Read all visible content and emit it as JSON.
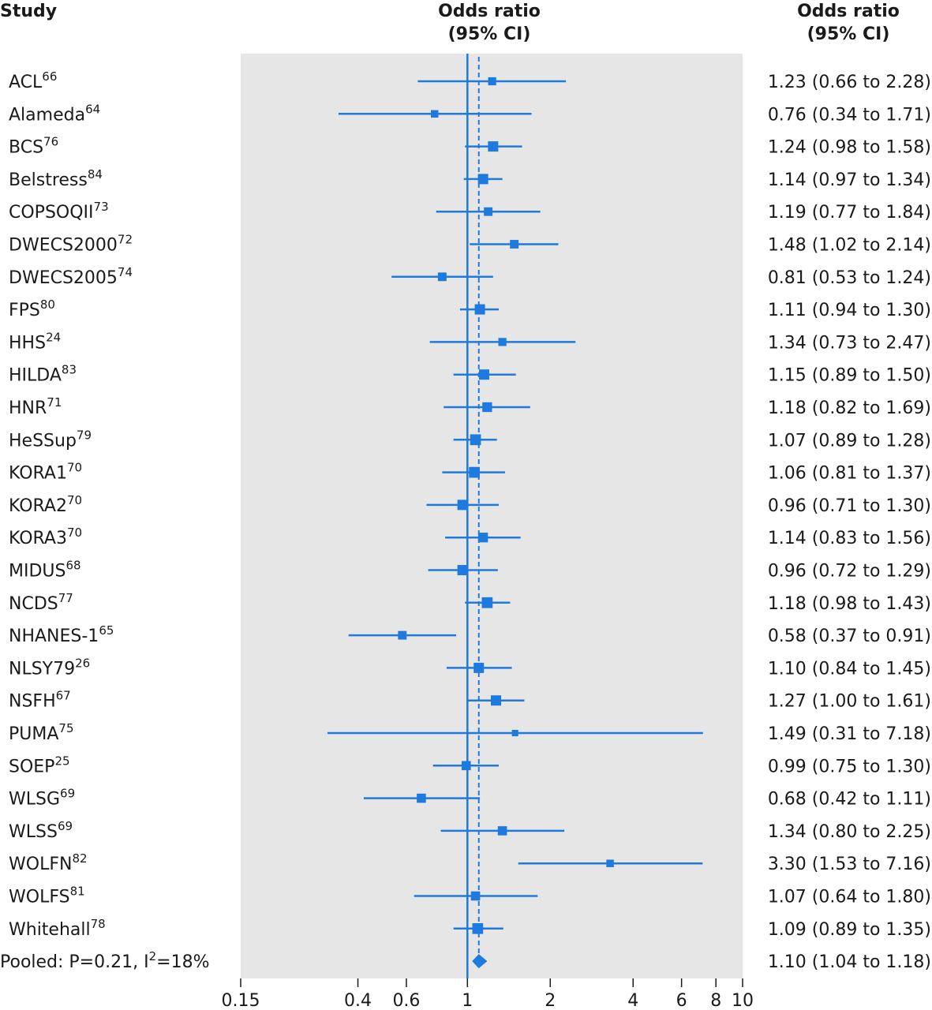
{
  "header": {
    "study": "Study",
    "center_line1": "Odds ratio",
    "center_line2": "(95% CI)",
    "right_line1": "Odds ratio",
    "right_line2": "(95% CI)"
  },
  "colors": {
    "accent": "#1f7ae0",
    "panel": "#e6e6e6",
    "text": "#1a1a1a"
  },
  "chart_data": {
    "type": "forest",
    "x_scale": "log",
    "xlim": [
      0.15,
      10
    ],
    "xticks": [
      0.15,
      0.4,
      0.6,
      1,
      2,
      4,
      6,
      8,
      10
    ],
    "xtick_labels": [
      "0.15",
      "0.4",
      "0.6",
      "1",
      "2",
      "4",
      "6",
      "8",
      "10"
    ],
    "reference_line": 1,
    "pooled_line": 1.1,
    "studies": [
      {
        "name": "ACL",
        "ref": "66",
        "or": 1.23,
        "lo": 0.66,
        "hi": 2.28,
        "ci_text": "1.23 (0.66 to 2.28)",
        "weight": 0.6
      },
      {
        "name": "Alameda",
        "ref": "64",
        "or": 0.76,
        "lo": 0.34,
        "hi": 1.71,
        "ci_text": "0.76 (0.34 to 1.71)",
        "weight": 0.5
      },
      {
        "name": "BCS",
        "ref": "76",
        "or": 1.24,
        "lo": 0.98,
        "hi": 1.58,
        "ci_text": "1.24 (0.98 to 1.58)",
        "weight": 1.0
      },
      {
        "name": "Belstress",
        "ref": "84",
        "or": 1.14,
        "lo": 0.97,
        "hi": 1.34,
        "ci_text": "1.14 (0.97 to 1.34)",
        "weight": 1.0
      },
      {
        "name": "COPSOQII",
        "ref": "73",
        "or": 1.19,
        "lo": 0.77,
        "hi": 1.84,
        "ci_text": "1.19 (0.77 to 1.84)",
        "weight": 0.7
      },
      {
        "name": "DWECS2000",
        "ref": "72",
        "or": 1.48,
        "lo": 1.02,
        "hi": 2.14,
        "ci_text": "1.48 (1.02 to 2.14)",
        "weight": 0.7
      },
      {
        "name": "DWECS2005",
        "ref": "74",
        "or": 0.81,
        "lo": 0.53,
        "hi": 1.24,
        "ci_text": "0.81 (0.53 to 1.24)",
        "weight": 0.7
      },
      {
        "name": "FPS",
        "ref": "80",
        "or": 1.11,
        "lo": 0.94,
        "hi": 1.3,
        "ci_text": "1.11 (0.94 to 1.30)",
        "weight": 1.0
      },
      {
        "name": "HHS",
        "ref": "24",
        "or": 1.34,
        "lo": 0.73,
        "hi": 2.47,
        "ci_text": "1.34 (0.73 to 2.47)",
        "weight": 0.6
      },
      {
        "name": "HILDA",
        "ref": "83",
        "or": 1.15,
        "lo": 0.89,
        "hi": 1.5,
        "ci_text": "1.15 (0.89 to 1.50)",
        "weight": 1.0
      },
      {
        "name": "HNR",
        "ref": "71",
        "or": 1.18,
        "lo": 0.82,
        "hi": 1.69,
        "ci_text": "1.18 (0.82 to 1.69)",
        "weight": 0.9
      },
      {
        "name": "HeSSup",
        "ref": "79",
        "or": 1.07,
        "lo": 0.89,
        "hi": 1.28,
        "ci_text": "1.07 (0.89 to 1.28)",
        "weight": 1.1
      },
      {
        "name": "KORA1",
        "ref": "70",
        "or": 1.06,
        "lo": 0.81,
        "hi": 1.37,
        "ci_text": "1.06 (0.81 to 1.37)",
        "weight": 1.1
      },
      {
        "name": "KORA2",
        "ref": "70",
        "or": 0.96,
        "lo": 0.71,
        "hi": 1.3,
        "ci_text": "0.96 (0.71 to 1.30)",
        "weight": 1.0
      },
      {
        "name": "KORA3",
        "ref": "70",
        "or": 1.14,
        "lo": 0.83,
        "hi": 1.56,
        "ci_text": "1.14 (0.83 to 1.56)",
        "weight": 0.9
      },
      {
        "name": "MIDUS",
        "ref": "68",
        "or": 0.96,
        "lo": 0.72,
        "hi": 1.29,
        "ci_text": "0.96 (0.72 to 1.29)",
        "weight": 1.0
      },
      {
        "name": "NCDS",
        "ref": "77",
        "or": 1.18,
        "lo": 0.98,
        "hi": 1.43,
        "ci_text": "1.18 (0.98 to 1.43)",
        "weight": 1.1
      },
      {
        "name": "NHANES-1",
        "ref": "65",
        "or": 0.58,
        "lo": 0.37,
        "hi": 0.91,
        "ci_text": "0.58 (0.37 to 0.91)",
        "weight": 0.7
      },
      {
        "name": "NLSY79",
        "ref": "26",
        "or": 1.1,
        "lo": 0.84,
        "hi": 1.45,
        "ci_text": "1.10 (0.84 to 1.45)",
        "weight": 1.0
      },
      {
        "name": "NSFH",
        "ref": "67",
        "or": 1.27,
        "lo": 1.0,
        "hi": 1.61,
        "ci_text": "1.27 (1.00 to 1.61)",
        "weight": 1.0
      },
      {
        "name": "PUMA",
        "ref": "75",
        "or": 1.49,
        "lo": 0.31,
        "hi": 7.18,
        "ci_text": "1.49 (0.31 to 7.18)",
        "weight": 0.3
      },
      {
        "name": "SOEP",
        "ref": "25",
        "or": 0.99,
        "lo": 0.75,
        "hi": 1.3,
        "ci_text": "0.99 (0.75 to 1.30)",
        "weight": 0.8
      },
      {
        "name": "WLSG",
        "ref": "69",
        "or": 0.68,
        "lo": 0.42,
        "hi": 1.11,
        "ci_text": "0.68 (0.42 to 1.11)",
        "weight": 0.8
      },
      {
        "name": "WLSS",
        "ref": "69",
        "or": 1.34,
        "lo": 0.8,
        "hi": 2.25,
        "ci_text": "1.34 (0.80 to 2.25)",
        "weight": 0.8
      },
      {
        "name": "WOLFN",
        "ref": "82",
        "or": 3.3,
        "lo": 1.53,
        "hi": 7.16,
        "ci_text": "3.30 (1.53 to 7.16)",
        "weight": 0.5
      },
      {
        "name": "WOLFS",
        "ref": "81",
        "or": 1.07,
        "lo": 0.64,
        "hi": 1.8,
        "ci_text": "1.07 (0.64 to 1.80)",
        "weight": 0.8
      },
      {
        "name": "Whitehall",
        "ref": "78",
        "or": 1.09,
        "lo": 0.89,
        "hi": 1.35,
        "ci_text": "1.09 (0.89 to 1.35)",
        "weight": 1.1
      }
    ],
    "pooled": {
      "label": "Pooled: P=0.21, I",
      "label_sup": "2",
      "label_tail": "=18%",
      "or": 1.1,
      "lo": 1.04,
      "hi": 1.18,
      "ci_text": "1.10 (1.04 to 1.18)"
    }
  }
}
